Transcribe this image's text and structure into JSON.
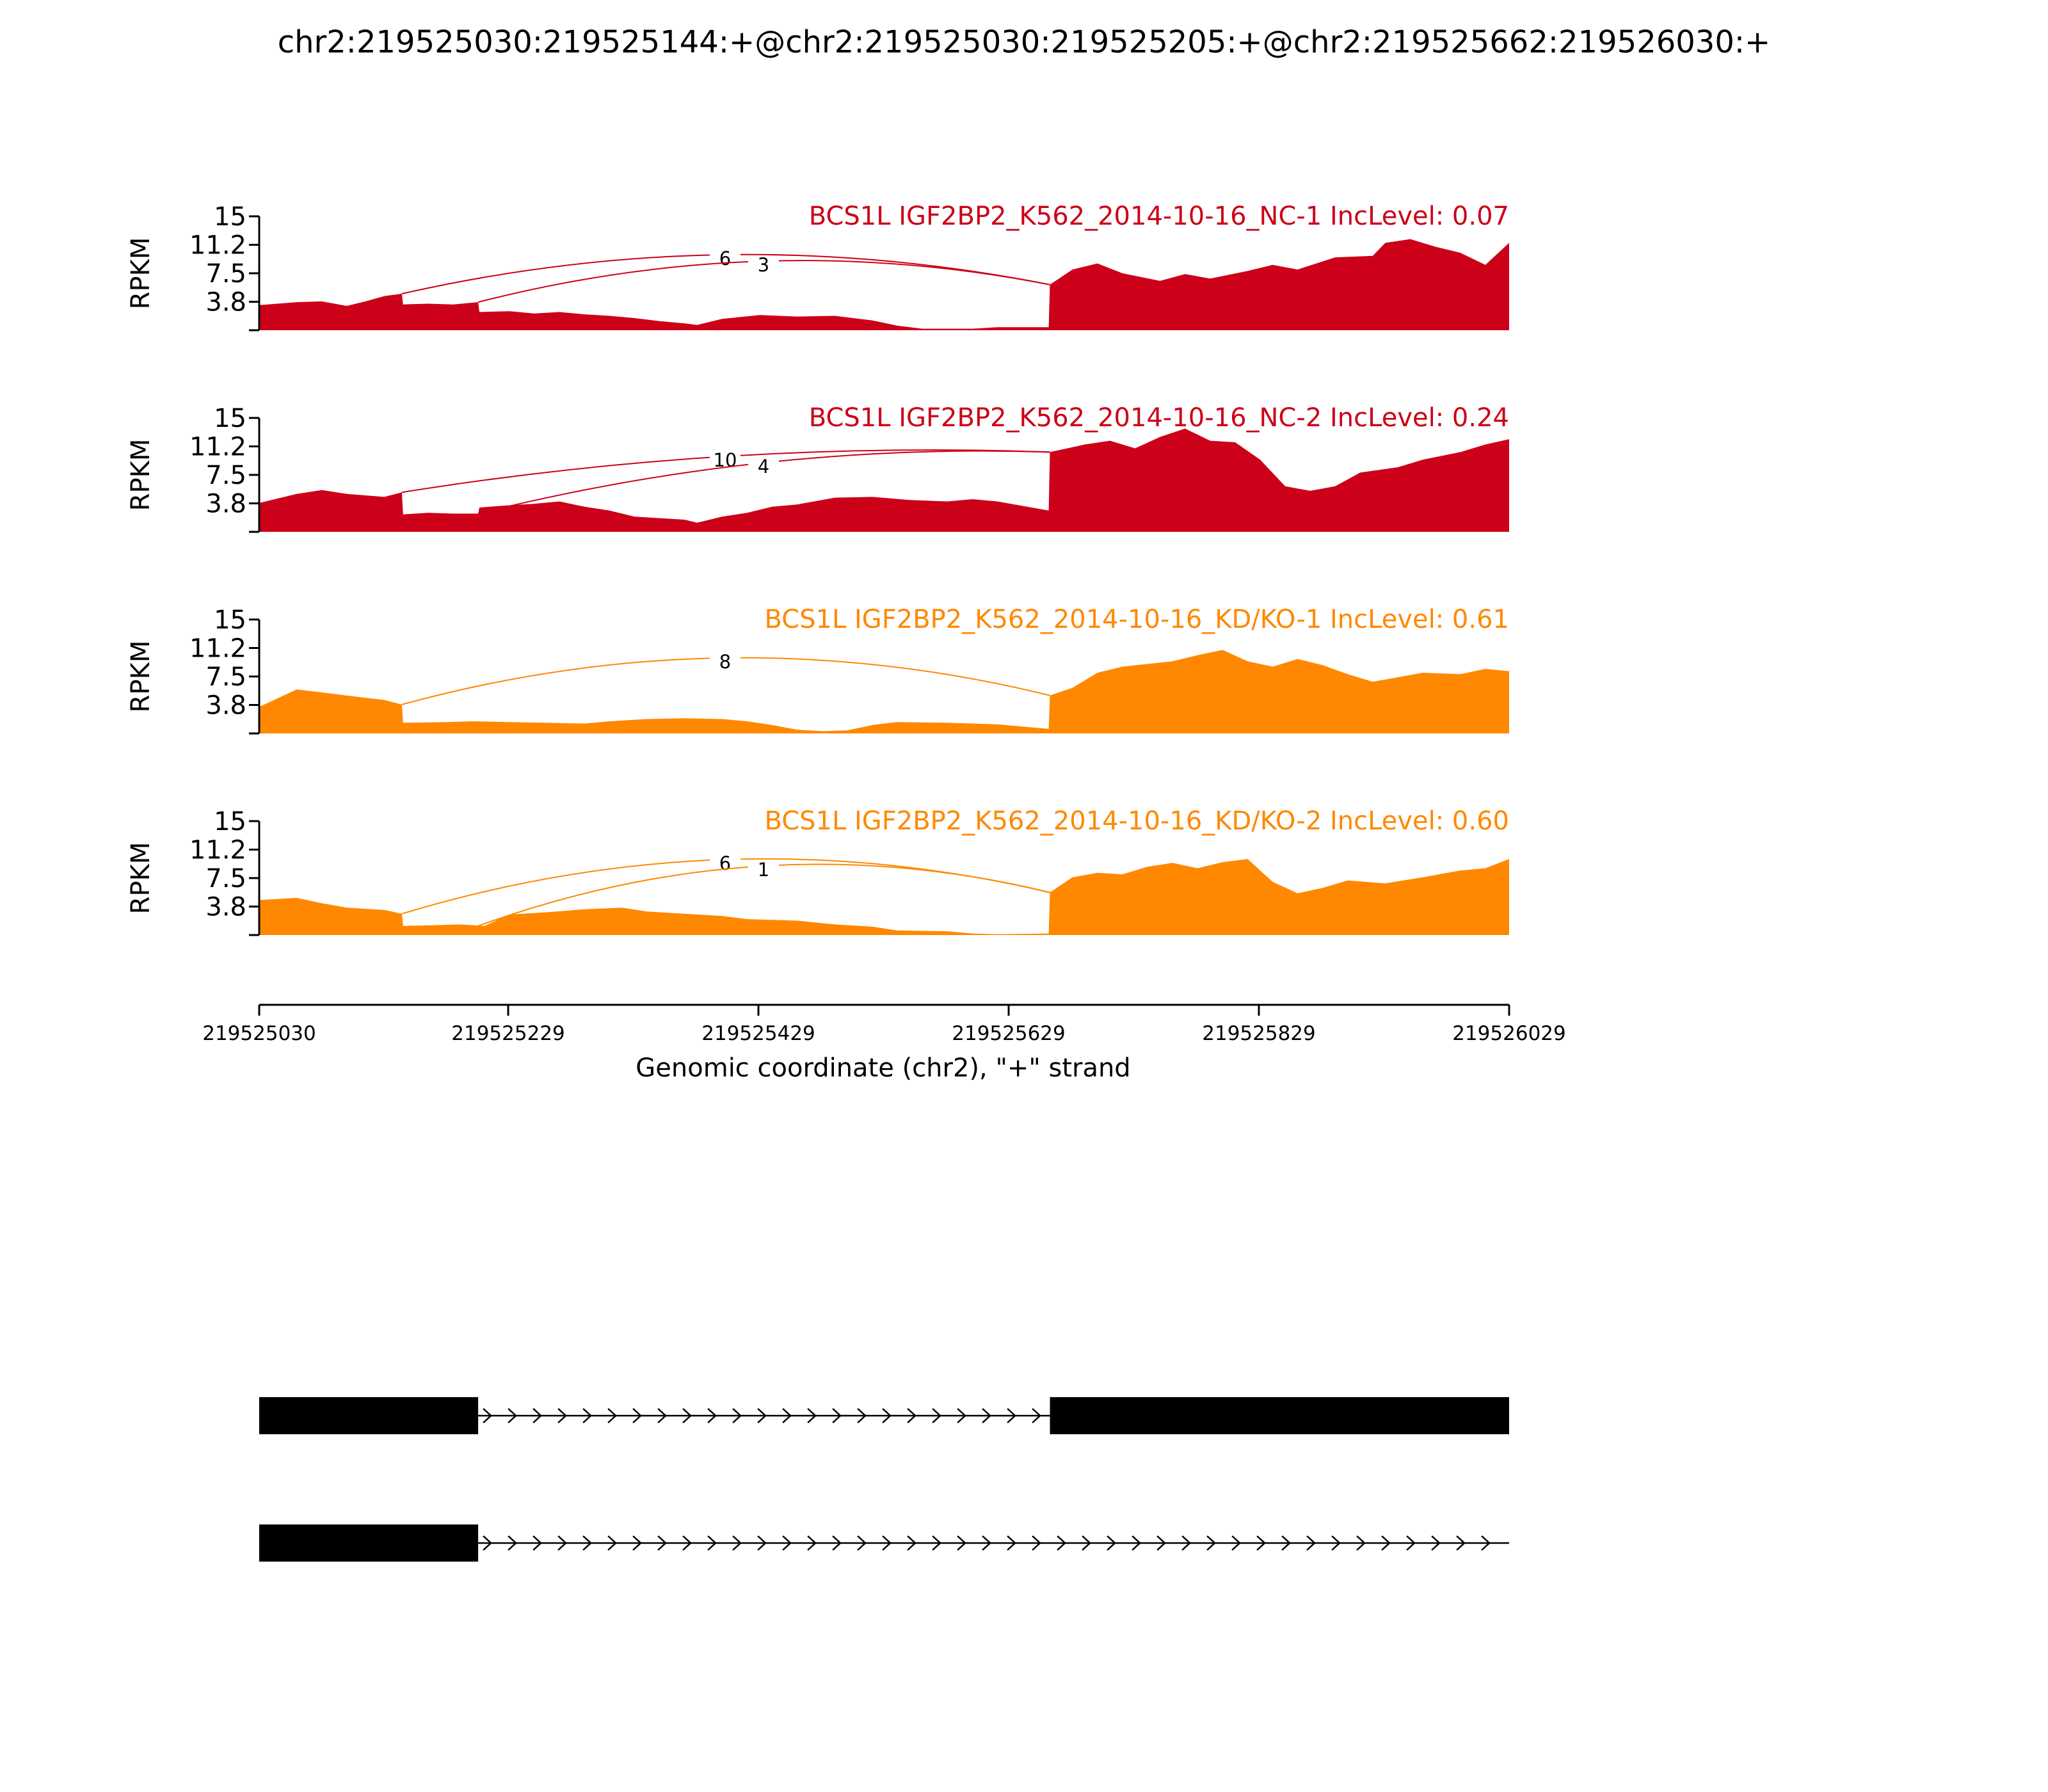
{
  "title": "chr2:219525030:219525144:+@chr2:219525030:219525205:+@chr2:219525662:219526030:+",
  "chart_data": {
    "type": "area",
    "xlim": [
      219525030,
      219526029
    ],
    "x_ticks": [
      219525030,
      219525229,
      219525429,
      219525629,
      219525829,
      219526029
    ],
    "xlabel": "Genomic coordinate (chr2), \"+\" strand",
    "ylabel": "RPKM",
    "ylim": [
      0,
      15
    ],
    "y_ticks": [
      "15",
      "11.2",
      "7.5",
      "3.8"
    ],
    "colors": {
      "NC": "#cc0018",
      "KD": "#ff8800",
      "gene": "#000000"
    },
    "panels": [
      {
        "label": "BCS1L IGF2BP2_K562_2014-10-16_NC-1 IncLevel: 0.07",
        "color": "#cc0018",
        "coverage": [
          [
            219525030,
            3.3
          ],
          [
            219525060,
            3.7
          ],
          [
            219525080,
            3.8
          ],
          [
            219525100,
            3.2
          ],
          [
            219525115,
            3.8
          ],
          [
            219525130,
            4.5
          ],
          [
            219525144,
            4.8
          ],
          [
            219525145,
            3.4
          ],
          [
            219525165,
            3.5
          ],
          [
            219525185,
            3.4
          ],
          [
            219525205,
            3.7
          ],
          [
            219525206,
            2.4
          ],
          [
            219525230,
            2.5
          ],
          [
            219525250,
            2.2
          ],
          [
            219525270,
            2.4
          ],
          [
            219525290,
            2.1
          ],
          [
            219525310,
            1.9
          ],
          [
            219525330,
            1.6
          ],
          [
            219525350,
            1.2
          ],
          [
            219525370,
            0.9
          ],
          [
            219525380,
            0.7
          ],
          [
            219525400,
            1.5
          ],
          [
            219525430,
            2.0
          ],
          [
            219525460,
            1.8
          ],
          [
            219525490,
            1.9
          ],
          [
            219525520,
            1.3
          ],
          [
            219525540,
            0.6
          ],
          [
            219525560,
            0.2
          ],
          [
            219525600,
            0.2
          ],
          [
            219525620,
            0.4
          ],
          [
            219525661,
            0.4
          ],
          [
            219525662,
            6.0
          ],
          [
            219525680,
            8.0
          ],
          [
            219525700,
            8.8
          ],
          [
            219525720,
            7.5
          ],
          [
            219525750,
            6.5
          ],
          [
            219525770,
            7.4
          ],
          [
            219525790,
            6.8
          ],
          [
            219525820,
            7.8
          ],
          [
            219525840,
            8.6
          ],
          [
            219525860,
            8.0
          ],
          [
            219525890,
            9.6
          ],
          [
            219525920,
            9.8
          ],
          [
            219525930,
            11.5
          ],
          [
            219525950,
            12.0
          ],
          [
            219525970,
            11.0
          ],
          [
            219525990,
            10.2
          ],
          [
            219526010,
            8.6
          ],
          [
            219526029,
            11.5
          ]
        ],
        "junctions": [
          {
            "start": 219525144,
            "end": 219525662,
            "count": "6"
          },
          {
            "start": 219525205,
            "end": 219525662,
            "count": "3"
          }
        ]
      },
      {
        "label": "BCS1L IGF2BP2_K562_2014-10-16_NC-2 IncLevel: 0.24",
        "color": "#cc0018",
        "coverage": [
          [
            219525030,
            3.8
          ],
          [
            219525060,
            5.0
          ],
          [
            219525080,
            5.5
          ],
          [
            219525100,
            5.0
          ],
          [
            219525130,
            4.6
          ],
          [
            219525144,
            5.2
          ],
          [
            219525145,
            2.3
          ],
          [
            219525165,
            2.5
          ],
          [
            219525185,
            2.4
          ],
          [
            219525205,
            2.4
          ],
          [
            219525206,
            3.2
          ],
          [
            219525230,
            3.5
          ],
          [
            219525250,
            3.7
          ],
          [
            219525270,
            4.0
          ],
          [
            219525290,
            3.3
          ],
          [
            219525310,
            2.8
          ],
          [
            219525330,
            2.0
          ],
          [
            219525350,
            1.8
          ],
          [
            219525370,
            1.6
          ],
          [
            219525380,
            1.2
          ],
          [
            219525400,
            2.0
          ],
          [
            219525420,
            2.5
          ],
          [
            219525440,
            3.3
          ],
          [
            219525460,
            3.6
          ],
          [
            219525490,
            4.5
          ],
          [
            219525520,
            4.6
          ],
          [
            219525550,
            4.2
          ],
          [
            219525580,
            4.0
          ],
          [
            219525600,
            4.3
          ],
          [
            219525620,
            4.0
          ],
          [
            219525661,
            2.8
          ],
          [
            219525662,
            10.5
          ],
          [
            219525690,
            11.5
          ],
          [
            219525710,
            12.0
          ],
          [
            219525730,
            11.0
          ],
          [
            219525750,
            12.5
          ],
          [
            219525770,
            13.6
          ],
          [
            219525790,
            12.0
          ],
          [
            219525810,
            11.8
          ],
          [
            219525830,
            9.5
          ],
          [
            219525850,
            6.0
          ],
          [
            219525870,
            5.4
          ],
          [
            219525890,
            6.0
          ],
          [
            219525910,
            7.8
          ],
          [
            219525940,
            8.5
          ],
          [
            219525960,
            9.5
          ],
          [
            219525990,
            10.5
          ],
          [
            219526010,
            11.5
          ],
          [
            219526029,
            12.2
          ]
        ],
        "junctions": [
          {
            "start": 219525144,
            "end": 219525662,
            "count": "10"
          },
          {
            "start": 219525205,
            "end": 219525662,
            "count": "4"
          }
        ]
      },
      {
        "label": "BCS1L IGF2BP2_K562_2014-10-16_KD/KO-1 IncLevel: 0.61",
        "color": "#ff8800",
        "coverage": [
          [
            219525030,
            3.5
          ],
          [
            219525060,
            5.8
          ],
          [
            219525080,
            5.4
          ],
          [
            219525100,
            5.0
          ],
          [
            219525130,
            4.4
          ],
          [
            219525144,
            3.8
          ],
          [
            219525145,
            1.4
          ],
          [
            219525180,
            1.5
          ],
          [
            219525200,
            1.6
          ],
          [
            219525230,
            1.5
          ],
          [
            219525260,
            1.4
          ],
          [
            219525290,
            1.3
          ],
          [
            219525310,
            1.6
          ],
          [
            219525340,
            1.9
          ],
          [
            219525370,
            2.0
          ],
          [
            219525400,
            1.9
          ],
          [
            219525420,
            1.6
          ],
          [
            219525440,
            1.1
          ],
          [
            219525460,
            0.5
          ],
          [
            219525480,
            0.3
          ],
          [
            219525500,
            0.4
          ],
          [
            219525520,
            1.1
          ],
          [
            219525540,
            1.5
          ],
          [
            219525580,
            1.4
          ],
          [
            219525620,
            1.2
          ],
          [
            219525661,
            0.6
          ],
          [
            219525662,
            5.0
          ],
          [
            219525680,
            6.0
          ],
          [
            219525700,
            8.0
          ],
          [
            219525720,
            8.8
          ],
          [
            219525760,
            9.5
          ],
          [
            219525780,
            10.3
          ],
          [
            219525800,
            11.0
          ],
          [
            219525820,
            9.5
          ],
          [
            219525840,
            8.8
          ],
          [
            219525860,
            9.8
          ],
          [
            219525880,
            9.0
          ],
          [
            219525900,
            7.8
          ],
          [
            219525920,
            6.8
          ],
          [
            219525940,
            7.4
          ],
          [
            219525960,
            8.0
          ],
          [
            219525990,
            7.8
          ],
          [
            219526010,
            8.5
          ],
          [
            219526029,
            8.2
          ]
        ],
        "junctions": [
          {
            "start": 219525144,
            "end": 219525662,
            "count": "8"
          }
        ]
      },
      {
        "label": "BCS1L IGF2BP2_K562_2014-10-16_KD/KO-2 IncLevel: 0.60",
        "color": "#ff8800",
        "coverage": [
          [
            219525030,
            4.6
          ],
          [
            219525060,
            4.9
          ],
          [
            219525080,
            4.2
          ],
          [
            219525100,
            3.6
          ],
          [
            219525130,
            3.3
          ],
          [
            219525144,
            2.8
          ],
          [
            219525145,
            1.2
          ],
          [
            219525170,
            1.3
          ],
          [
            219525190,
            1.4
          ],
          [
            219525210,
            1.2
          ],
          [
            219525230,
            2.7
          ],
          [
            219525260,
            3.0
          ],
          [
            219525290,
            3.4
          ],
          [
            219525320,
            3.6
          ],
          [
            219525340,
            3.1
          ],
          [
            219525370,
            2.8
          ],
          [
            219525400,
            2.5
          ],
          [
            219525420,
            2.1
          ],
          [
            219525460,
            1.9
          ],
          [
            219525490,
            1.4
          ],
          [
            219525520,
            1.1
          ],
          [
            219525540,
            0.6
          ],
          [
            219525580,
            0.5
          ],
          [
            219525600,
            0.2
          ],
          [
            219525620,
            0.1
          ],
          [
            219525661,
            0.2
          ],
          [
            219525662,
            5.6
          ],
          [
            219525680,
            7.6
          ],
          [
            219525700,
            8.2
          ],
          [
            219525720,
            8.0
          ],
          [
            219525740,
            9.0
          ],
          [
            219525760,
            9.5
          ],
          [
            219525780,
            8.8
          ],
          [
            219525800,
            9.6
          ],
          [
            219525820,
            10.0
          ],
          [
            219525840,
            7.0
          ],
          [
            219525860,
            5.5
          ],
          [
            219525880,
            6.2
          ],
          [
            219525900,
            7.2
          ],
          [
            219525930,
            6.8
          ],
          [
            219525960,
            7.6
          ],
          [
            219525990,
            8.5
          ],
          [
            219526010,
            8.8
          ],
          [
            219526029,
            10.0
          ]
        ],
        "junctions": [
          {
            "start": 219525144,
            "end": 219525662,
            "count": "6"
          },
          {
            "start": 219525205,
            "end": 219525662,
            "count": "1"
          }
        ]
      }
    ],
    "gene_tracks": [
      {
        "exons": [
          [
            219525030,
            219525205
          ],
          [
            219525662,
            219526029
          ]
        ],
        "intron": [
          219525205,
          219525662
        ]
      },
      {
        "exons": [
          [
            219525030,
            219525205
          ]
        ],
        "intron": [
          219525205,
          219526029
        ]
      }
    ]
  }
}
